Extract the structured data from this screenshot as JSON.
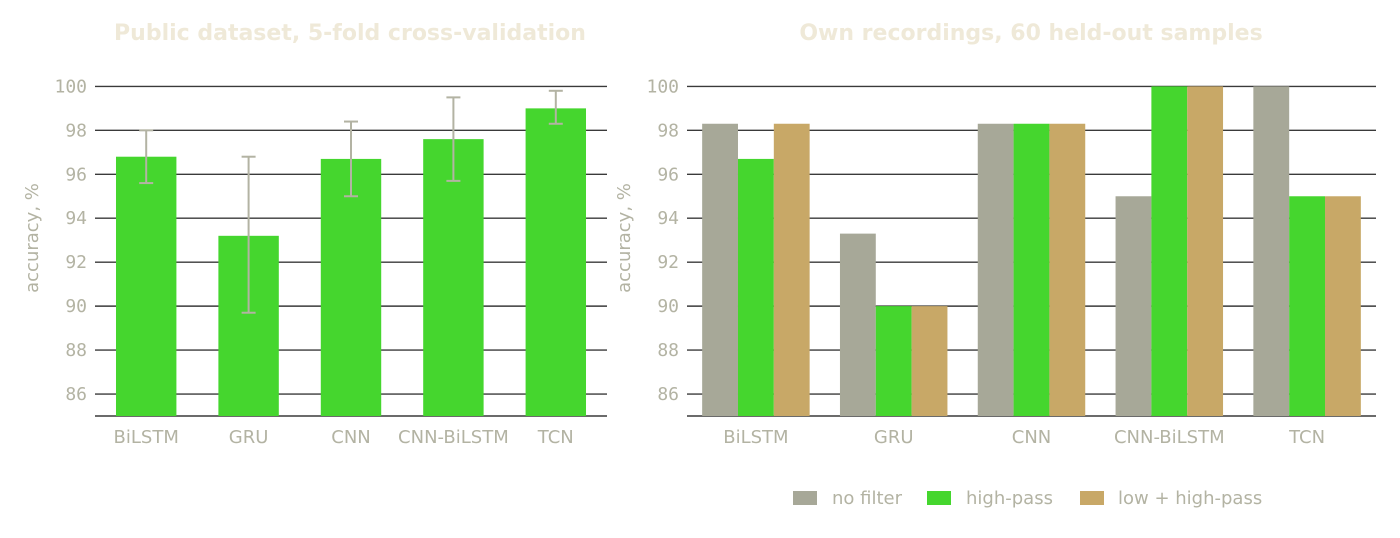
{
  "chart_data": [
    {
      "type": "bar",
      "title": "Public dataset, 5-fold cross-validation",
      "ylabel": "accuracy, %",
      "xlabel": "",
      "ylim": [
        85,
        100.2
      ],
      "yticks": [
        86,
        88,
        90,
        92,
        94,
        96,
        98,
        100
      ],
      "categories": [
        "BiLSTM",
        "GRU",
        "CNN",
        "CNN-BiLSTM",
        "TCN"
      ],
      "series": [
        {
          "values": [
            96.8,
            93.2,
            96.7,
            97.6,
            99.0
          ],
          "error_low": [
            95.6,
            89.7,
            95.0,
            95.7,
            98.3
          ],
          "error_high": [
            98.0,
            96.8,
            98.4,
            99.5,
            99.8
          ],
          "color": "#45d62e"
        }
      ],
      "grid": true
    },
    {
      "type": "bar",
      "title": "Own recordings, 60 held-out samples",
      "ylabel": "accuracy, %",
      "xlabel": "",
      "ylim": [
        85,
        100.2
      ],
      "yticks": [
        86,
        88,
        90,
        92,
        94,
        96,
        98,
        100
      ],
      "categories": [
        "BiLSTM",
        "GRU",
        "CNN",
        "CNN-BiLSTM",
        "TCN"
      ],
      "series": [
        {
          "name": "no filter",
          "values": [
            98.3,
            93.3,
            98.3,
            95.0,
            100.0
          ],
          "color": "#a7a898"
        },
        {
          "name": "high-pass",
          "values": [
            96.7,
            90.0,
            98.3,
            100.0,
            95.0
          ],
          "color": "#45d62e"
        },
        {
          "name": "low + high-pass",
          "values": [
            98.3,
            90.0,
            98.3,
            100.0,
            95.0
          ],
          "color": "#c8a867"
        }
      ],
      "legend": "bottom-center",
      "grid": true
    }
  ]
}
